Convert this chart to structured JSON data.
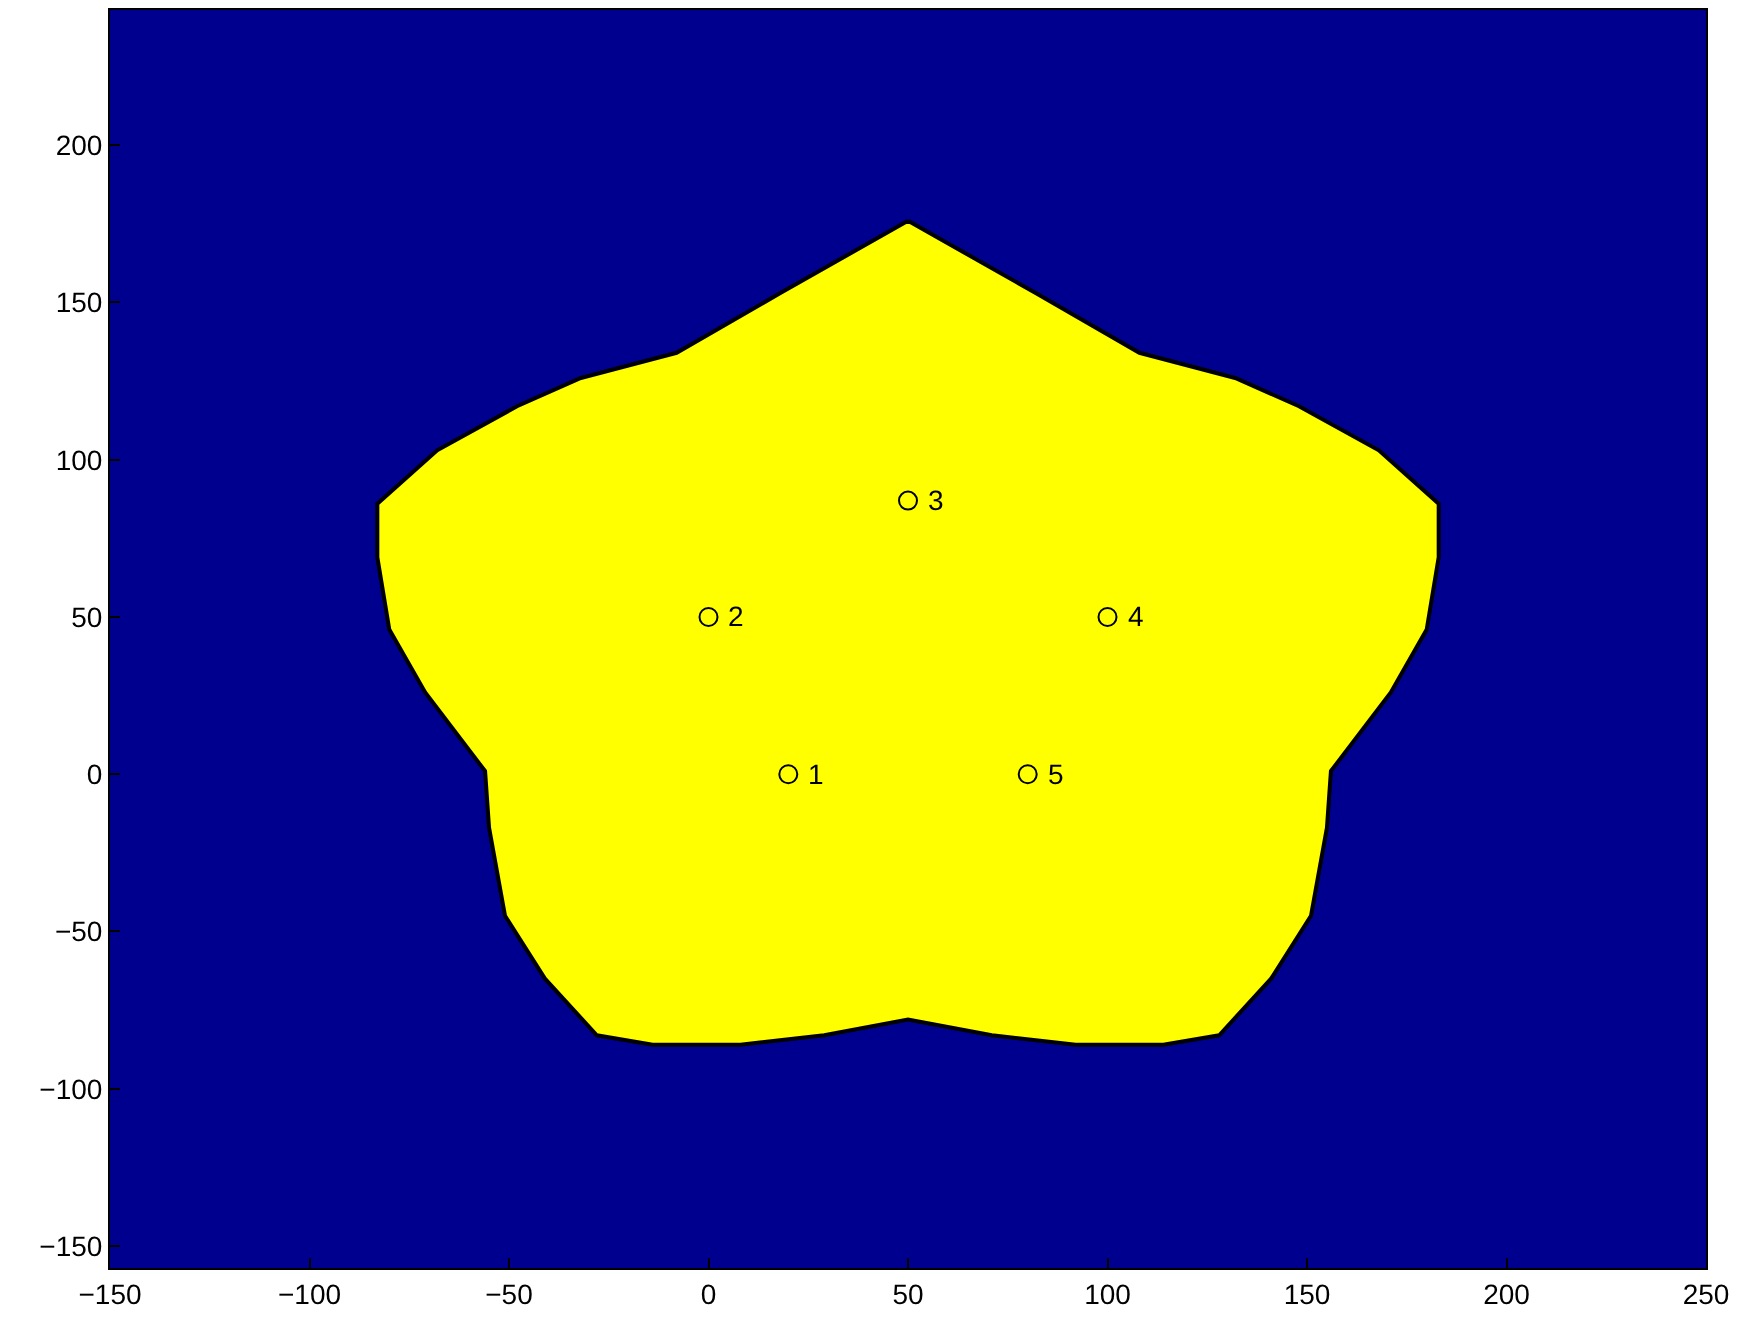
{
  "chart_data": {
    "type": "scatter",
    "xlim": [
      -150,
      250
    ],
    "ylim": [
      -157,
      243
    ],
    "xticks": [
      -150,
      -100,
      -50,
      0,
      50,
      100,
      150,
      200,
      250
    ],
    "yticks": [
      -150,
      -100,
      -50,
      0,
      50,
      100,
      150,
      200
    ],
    "grid": false,
    "bands": [
      {
        "axis": "x",
        "from": -150,
        "to": 250,
        "color": "#00008f"
      }
    ],
    "series": [
      {
        "type": "area",
        "color": "#ffff00",
        "x": [
          50,
          82,
          108,
          132,
          148,
          168,
          183,
          183,
          180,
          171,
          156,
          155,
          151,
          141,
          128,
          114,
          92,
          71,
          50,
          29,
          8,
          -14,
          -28,
          -41,
          -51,
          -55,
          -56,
          -71,
          -80,
          -83,
          -83,
          -68,
          -48,
          -32,
          -8,
          18,
          50
        ],
        "values": [
          176,
          153,
          134,
          126,
          117,
          103,
          86,
          69,
          46,
          26,
          1,
          -17,
          -45,
          -65,
          -83,
          -86,
          -86,
          -83,
          -78,
          -83,
          -86,
          -86,
          -83,
          -65,
          -45,
          -17,
          1,
          26,
          46,
          69,
          86,
          103,
          117,
          126,
          134,
          153,
          176
        ]
      },
      {
        "color": "#000000",
        "marker": "circle",
        "x": [
          20,
          0,
          50,
          100,
          80
        ],
        "values": [
          0,
          50,
          87,
          50,
          0
        ]
      }
    ],
    "annotations": [
      {
        "text": "1",
        "x": 20,
        "y": 0
      },
      {
        "text": "2",
        "x": 0,
        "y": 50
      },
      {
        "text": "3",
        "x": 50,
        "y": 87
      },
      {
        "text": "4",
        "x": 100,
        "y": 50
      },
      {
        "text": "5",
        "x": 80,
        "y": 0
      }
    ]
  }
}
